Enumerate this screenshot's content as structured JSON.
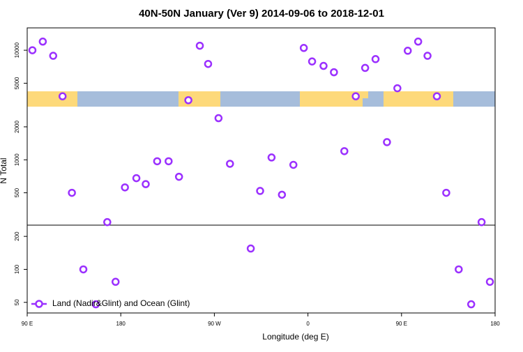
{
  "chart_data": {
    "type": "scatter",
    "title": "40N-50N January (Ver 9)   2014-09-06 to 2018-12-01",
    "x_label": "Longitude (deg E)",
    "y_label": "N Total",
    "xlim": [
      90,
      540
    ],
    "xticks": [
      {
        "value": 90,
        "label": "90 E"
      },
      180,
      {
        "value": 270,
        "label": "90 W"
      },
      {
        "value": 360,
        "label": "0"
      },
      {
        "value": 450,
        "label": "90 E"
      },
      {
        "value": 540,
        "label": "180"
      }
    ],
    "ylim": [
      40,
      16000
    ],
    "ylog": true,
    "yticks": [
      50,
      100,
      200,
      500,
      1000,
      2000,
      5000,
      10000
    ],
    "legend": "lower left",
    "series": [
      {
        "name": "Land (Nadir&Glint) and Ocean (Glint)",
        "color": "#9b30ff",
        "x": [
          95,
          105,
          115,
          124,
          133,
          144,
          156,
          167,
          175,
          184,
          195,
          204,
          215,
          226,
          236,
          245,
          256,
          264,
          274,
          285,
          305,
          314,
          325,
          335,
          346,
          356,
          364,
          375,
          385,
          395,
          406,
          415,
          425,
          436,
          446,
          456,
          466,
          475,
          484,
          493,
          505,
          517,
          527,
          535
        ],
        "values": [
          10000,
          12000,
          8900,
          3800,
          500,
          100,
          48,
          270,
          77,
          560,
          680,
          600,
          970,
          970,
          700,
          3500,
          11000,
          7500,
          2400,
          920,
          155,
          520,
          1050,
          480,
          900,
          10500,
          7900,
          7200,
          6300,
          1200,
          3800,
          6900,
          8300,
          1450,
          4500,
          9900,
          12000,
          8900,
          3800,
          500,
          100,
          48,
          270,
          77
        ]
      }
    ]
  }
}
